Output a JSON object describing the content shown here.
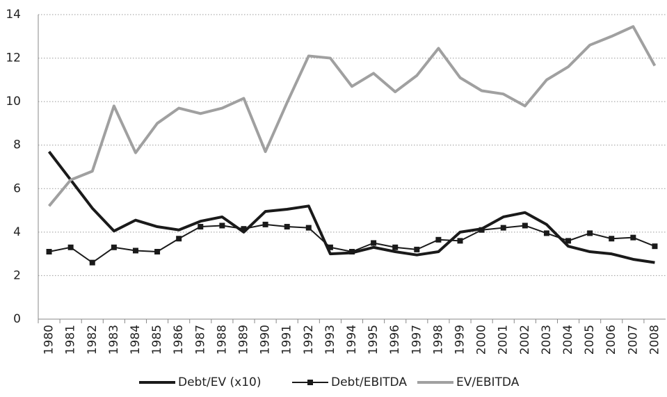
{
  "chart_data": {
    "type": "line",
    "categories": [
      "1980",
      "1981",
      "1982",
      "1983",
      "1984",
      "1985",
      "1986",
      "1987",
      "1988",
      "1989",
      "1990",
      "1991",
      "1992",
      "1993",
      "1994",
      "1995",
      "1996",
      "1997",
      "1998",
      "1999",
      "2000",
      "2001",
      "2002",
      "2003",
      "2004",
      "2005",
      "2006",
      "2007",
      "2008"
    ],
    "series": [
      {
        "name": "Debt/EV (x10)",
        "color": "#1a1a1a",
        "marker": "none",
        "width": 4,
        "values": [
          7.7,
          6.4,
          5.1,
          4.05,
          4.55,
          4.25,
          4.1,
          4.5,
          4.7,
          4.0,
          4.95,
          5.05,
          5.2,
          3.0,
          3.05,
          3.3,
          3.1,
          2.95,
          3.1,
          4.0,
          4.15,
          4.7,
          4.9,
          4.35,
          3.35,
          3.1,
          3.0,
          2.75,
          2.6
        ]
      },
      {
        "name": "Debt/EBITDA",
        "color": "#1a1a1a",
        "marker": "square",
        "width": 2,
        "values": [
          3.1,
          3.3,
          2.6,
          3.3,
          3.15,
          3.1,
          3.7,
          4.25,
          4.3,
          4.15,
          4.35,
          4.25,
          4.2,
          3.3,
          3.1,
          3.5,
          3.3,
          3.2,
          3.65,
          3.6,
          4.1,
          4.2,
          4.3,
          3.95,
          3.6,
          3.95,
          3.7,
          3.75,
          3.35
        ]
      },
      {
        "name": "EV/EBITDA",
        "color": "#a0a0a0",
        "marker": "none",
        "width": 4,
        "values": [
          5.2,
          6.4,
          6.8,
          9.8,
          7.65,
          9.0,
          9.7,
          9.45,
          9.7,
          10.15,
          7.7,
          9.95,
          12.1,
          12.0,
          10.7,
          11.3,
          10.45,
          11.2,
          12.45,
          11.1,
          10.5,
          10.35,
          9.8,
          11.0,
          11.6,
          12.6,
          13.0,
          13.45,
          11.65
        ]
      }
    ],
    "ylim": [
      0,
      14
    ],
    "yticks": [
      0,
      2,
      4,
      6,
      8,
      10,
      12,
      14
    ],
    "grid": true,
    "legend": "bottom"
  }
}
